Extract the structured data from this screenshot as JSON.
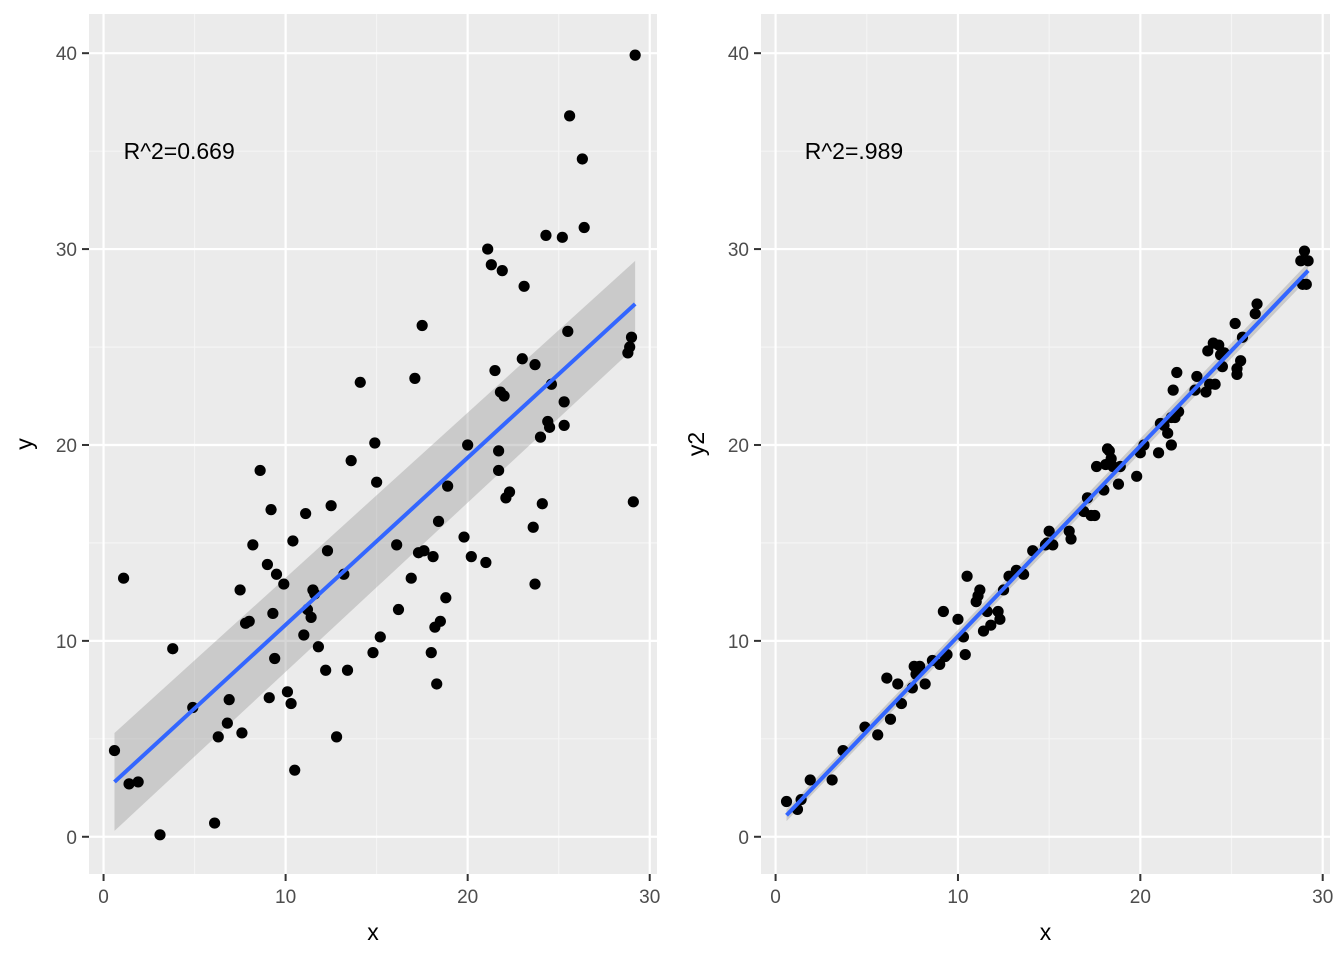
{
  "chart_data": [
    {
      "type": "scatter",
      "title": "",
      "xlabel": "x",
      "ylabel": "y",
      "xlim": [
        -0.8,
        30.4
      ],
      "ylim": [
        -1.9,
        42.0
      ],
      "x_ticks": [
        0,
        10,
        20,
        30
      ],
      "y_ticks": [
        0,
        10,
        20,
        30,
        40
      ],
      "grid": true,
      "annotation": {
        "text": "R^2=0.669",
        "x": 1.1,
        "y": 35.0
      },
      "series": [
        {
          "kind": "points",
          "x": [
            0.6,
            1.1,
            1.4,
            1.9,
            3.1,
            3.8,
            4.9,
            6.1,
            6.3,
            6.8,
            6.9,
            7.5,
            7.6,
            7.8,
            8.0,
            8.2,
            8.6,
            9.0,
            9.1,
            9.2,
            9.3,
            9.4,
            9.5,
            9.9,
            10.1,
            10.3,
            10.4,
            10.5,
            11.0,
            11.1,
            11.2,
            11.4,
            11.5,
            11.6,
            11.8,
            12.2,
            12.3,
            12.5,
            12.8,
            13.2,
            13.4,
            13.6,
            14.1,
            14.8,
            14.9,
            15.0,
            15.2,
            16.1,
            16.2,
            16.9,
            17.1,
            17.3,
            17.5,
            17.6,
            18.0,
            18.1,
            18.2,
            18.3,
            18.4,
            18.5,
            18.8,
            18.9,
            19.8,
            20.0,
            20.2,
            21.0,
            21.1,
            21.3,
            21.5,
            21.7,
            21.7,
            21.8,
            21.9,
            22.0,
            22.1,
            22.3,
            23.0,
            23.1,
            23.6,
            23.7,
            23.7,
            24.0,
            24.1,
            24.3,
            24.4,
            24.5,
            24.6,
            25.2,
            25.3,
            25.3,
            25.5,
            25.6,
            26.3,
            26.4,
            28.8,
            28.9,
            29.0,
            29.1,
            29.2
          ],
          "y": [
            4.4,
            13.2,
            2.7,
            2.8,
            0.1,
            9.6,
            6.6,
            0.7,
            5.1,
            5.8,
            7.0,
            12.6,
            5.3,
            10.9,
            11.0,
            14.9,
            18.7,
            13.9,
            7.1,
            16.7,
            11.4,
            9.1,
            13.4,
            12.9,
            7.4,
            6.8,
            15.1,
            3.4,
            10.3,
            16.5,
            11.6,
            11.2,
            12.6,
            12.4,
            9.7,
            8.5,
            14.6,
            16.9,
            5.1,
            13.4,
            8.5,
            19.2,
            23.2,
            9.4,
            20.1,
            18.1,
            10.2,
            14.9,
            11.6,
            13.2,
            23.4,
            14.5,
            26.1,
            14.6,
            9.4,
            14.3,
            10.7,
            7.8,
            16.1,
            11.0,
            12.2,
            17.9,
            15.3,
            20.0,
            14.3,
            14.0,
            30.0,
            29.2,
            23.8,
            19.7,
            18.7,
            22.7,
            28.9,
            22.5,
            17.3,
            17.6,
            24.4,
            28.1,
            15.8,
            24.1,
            12.9,
            20.4,
            17.0,
            30.7,
            21.2,
            20.9,
            23.1,
            30.6,
            21.0,
            22.2,
            25.8,
            36.8,
            34.6,
            31.1,
            24.7,
            25.0,
            25.5,
            17.1,
            39.9
          ]
        },
        {
          "kind": "fit",
          "x": [
            0.6,
            29.2
          ],
          "y": [
            2.8,
            27.2
          ],
          "ci_lower": [
            0.3,
            25.0
          ],
          "ci_upper": [
            5.3,
            29.4
          ]
        }
      ]
    },
    {
      "type": "scatter",
      "title": "",
      "xlabel": "x",
      "ylabel": "y2",
      "xlim": [
        -0.8,
        30.4
      ],
      "ylim": [
        -1.9,
        42.0
      ],
      "x_ticks": [
        0,
        10,
        20,
        30
      ],
      "y_ticks": [
        0,
        10,
        20,
        30,
        40
      ],
      "grid": true,
      "annotation": {
        "text": "R^2=.989",
        "x": 1.6,
        "y": 35.0
      },
      "series": [
        {
          "kind": "points",
          "x": [
            0.6,
            1.2,
            1.4,
            1.9,
            3.1,
            3.7,
            4.9,
            5.6,
            6.1,
            6.3,
            6.7,
            6.9,
            7.5,
            7.6,
            7.7,
            7.9,
            8.2,
            8.6,
            9.0,
            9.2,
            9.3,
            9.4,
            10.0,
            10.3,
            10.4,
            10.5,
            11.0,
            11.1,
            11.2,
            11.4,
            11.6,
            11.8,
            12.2,
            12.3,
            12.5,
            12.8,
            13.2,
            13.6,
            14.1,
            14.8,
            14.9,
            15.0,
            15.2,
            16.1,
            16.2,
            16.9,
            17.1,
            17.3,
            17.5,
            17.6,
            18.0,
            18.1,
            18.2,
            18.3,
            18.4,
            18.5,
            18.8,
            18.9,
            19.8,
            20.0,
            20.2,
            21.0,
            21.1,
            21.3,
            21.5,
            21.7,
            21.7,
            21.8,
            21.9,
            22.0,
            22.1,
            23.0,
            23.1,
            23.6,
            23.7,
            23.8,
            24.0,
            24.1,
            24.3,
            24.4,
            24.5,
            24.6,
            25.2,
            25.3,
            25.3,
            25.5,
            25.6,
            26.3,
            26.4,
            28.8,
            28.9,
            29.0,
            29.1,
            29.2
          ],
          "y": [
            1.8,
            1.4,
            1.9,
            2.9,
            2.9,
            4.4,
            5.6,
            5.2,
            8.1,
            6.0,
            7.8,
            6.8,
            7.6,
            8.7,
            8.3,
            8.7,
            7.8,
            9.0,
            8.8,
            11.5,
            9.2,
            9.3,
            11.1,
            10.2,
            9.3,
            13.3,
            12.0,
            12.3,
            12.6,
            10.5,
            11.5,
            10.8,
            11.5,
            11.1,
            12.6,
            13.3,
            13.6,
            13.4,
            14.6,
            14.9,
            15.0,
            15.6,
            14.9,
            15.6,
            15.2,
            16.6,
            17.3,
            16.4,
            16.4,
            18.9,
            17.7,
            19.0,
            19.8,
            19.7,
            19.3,
            18.9,
            18.0,
            18.9,
            18.4,
            19.6,
            20.0,
            19.6,
            21.1,
            21.0,
            20.6,
            20.0,
            21.4,
            22.8,
            21.4,
            23.7,
            21.7,
            22.8,
            23.5,
            22.7,
            24.8,
            23.1,
            25.2,
            23.1,
            25.1,
            24.6,
            24.0,
            24.7,
            26.2,
            23.9,
            23.6,
            24.3,
            25.5,
            26.7,
            27.2,
            29.4,
            28.2,
            29.9,
            28.2,
            29.4
          ]
        },
        {
          "kind": "fit",
          "x": [
            0.6,
            29.2
          ],
          "y": [
            1.1,
            28.9
          ],
          "ci_lower": [
            0.8,
            28.5
          ],
          "ci_upper": [
            1.4,
            29.3
          ]
        }
      ]
    }
  ]
}
